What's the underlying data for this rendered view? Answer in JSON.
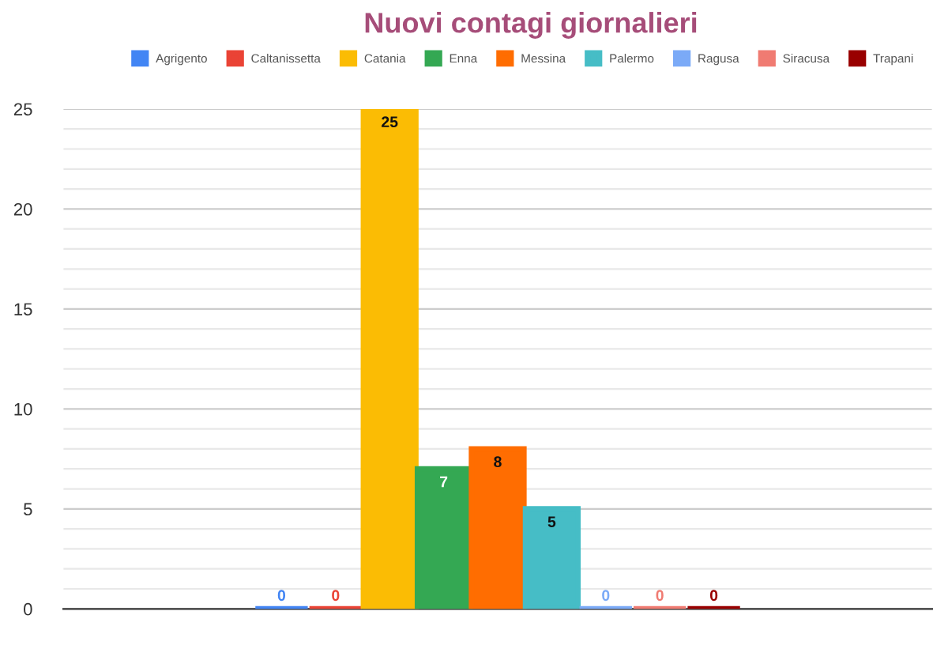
{
  "chart_data": {
    "type": "bar",
    "title": "Nuovi contagi giornalieri",
    "categories": [
      null
    ],
    "series": [
      {
        "name": "Agrigento",
        "color": "#4285f4",
        "values": [
          0
        ]
      },
      {
        "name": "Caltanissetta",
        "color": "#ea4335",
        "values": [
          0
        ]
      },
      {
        "name": "Catania",
        "color": "#fbbc04",
        "values": [
          25
        ]
      },
      {
        "name": "Enna",
        "color": "#34a853",
        "values": [
          7
        ]
      },
      {
        "name": "Messina",
        "color": "#ff6d01",
        "values": [
          8
        ]
      },
      {
        "name": "Palermo",
        "color": "#46bdc6",
        "values": [
          5
        ]
      },
      {
        "name": "Ragusa",
        "color": "#7baaf7",
        "values": [
          0
        ]
      },
      {
        "name": "Siracusa",
        "color": "#f07b72",
        "values": [
          0
        ]
      },
      {
        "name": "Trapani",
        "color": "#990000",
        "values": [
          0
        ]
      }
    ],
    "ylim": [
      0,
      25
    ],
    "yticks": [
      0,
      {
        "value": 1,
        "label": null
      },
      {
        "value": 2,
        "label": null
      },
      {
        "value": 3,
        "label": null
      },
      {
        "value": 4,
        "label": null
      },
      5,
      {
        "value": 6,
        "label": null
      },
      {
        "value": 7,
        "label": null
      },
      {
        "value": 8,
        "label": null
      },
      {
        "value": 9,
        "label": null
      },
      10,
      {
        "value": 11,
        "label": null
      },
      {
        "value": 12,
        "label": null
      },
      {
        "value": 13,
        "label": null
      },
      {
        "value": 14,
        "label": null
      },
      15,
      {
        "value": 16,
        "label": null
      },
      {
        "value": 17,
        "label": null
      },
      {
        "value": 18,
        "label": null
      },
      {
        "value": 19,
        "label": null
      },
      20,
      {
        "value": 21,
        "label": null
      },
      {
        "value": 22,
        "label": null
      },
      {
        "value": 23,
        "label": null
      },
      {
        "value": 24,
        "label": null
      },
      25
    ],
    "grid": "y",
    "legend": "top",
    "data_labels": true
  }
}
